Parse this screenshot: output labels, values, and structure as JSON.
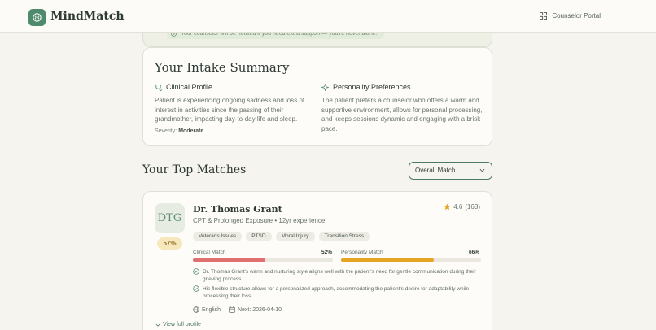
{
  "header": {
    "brand": "MindMatch",
    "portal_label": "Counselor Portal"
  },
  "notice": {
    "text": "Your counselor will be notified if you need extra support — you're never alone."
  },
  "intake": {
    "title": "Your Intake Summary",
    "clinical": {
      "heading": "Clinical Profile",
      "text": "Patient is experiencing ongoing sadness and loss of interest in activities since the passing of their grandmother, impacting day-to-day life and sleep.",
      "severity_label": "Severity:",
      "severity_value": "Moderate"
    },
    "personality": {
      "heading": "Personality Preferences",
      "text": "The patient prefers a counselor who offers a warm and supportive environment, allows for personal processing, and keeps sessions dynamic and engaging with a brisk pace."
    }
  },
  "matches": {
    "title": "Your Top Matches",
    "sort": {
      "selected": "Overall Match"
    },
    "items": [
      {
        "initials": "DTG",
        "overall": "57%",
        "name": "Dr. Thomas Grant",
        "subtitle": "CPT & Prolonged Exposure • 12yr experience",
        "rating": "4.6",
        "reviews": "(163)",
        "tags": [
          "Veterans Issues",
          "PTSD",
          "Moral Injury",
          "Transition Stress"
        ],
        "clinical_label": "Clinical Match",
        "clinical_value": "52%",
        "clinical_fraction": 0.52,
        "personality_label": "Personality Match",
        "personality_value": "66%",
        "personality_fraction": 0.66,
        "reasons": [
          "Dr. Thomas Grant's warm and nurturing style aligns well with the patient's need for gentle communication during their grieving process.",
          "His flexible structure allows for a personalized approach, accommodating the patient's desire for adaptability while processing their loss."
        ],
        "language": "English",
        "next_label": "Next: 2026-04-10",
        "view_label": "View full profile"
      }
    ]
  },
  "colors": {
    "accent": "#4e8a6b",
    "clinical_bar": "#e06f6f",
    "personality_bar": "#e3a523"
  },
  "icons": {
    "logo": "brain-icon",
    "portal": "grid-icon",
    "notice": "check-circle-icon",
    "clinical": "stethoscope-icon",
    "personality": "sparkles-icon",
    "star": "star-icon",
    "globe": "globe-icon",
    "calendar": "calendar-icon",
    "chevron": "chevron-down-icon"
  }
}
